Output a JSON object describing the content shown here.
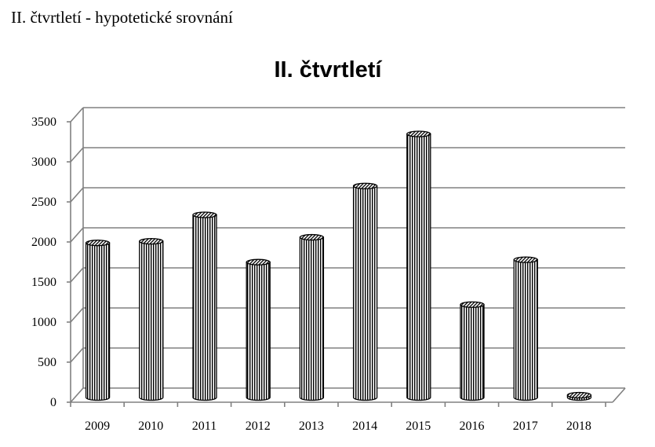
{
  "page": {
    "heading": "II. čtvrtletí - hypotetické srovnání"
  },
  "chart_data": {
    "type": "bar",
    "title": "II. čtvrtletí",
    "xlabel": "",
    "ylabel": "",
    "categories": [
      "2009",
      "2010",
      "2011",
      "2012",
      "2013",
      "2014",
      "2015",
      "2016",
      "2017",
      "2018"
    ],
    "values": [
      1900,
      1920,
      2250,
      1660,
      1970,
      2610,
      3260,
      1130,
      1690,
      0
    ],
    "ylim": [
      0,
      3500
    ],
    "yticks": [
      0,
      500,
      1000,
      1500,
      2000,
      2500,
      3000,
      3500
    ],
    "grid": true,
    "legend": "none",
    "style": "3d-cylinder, vertical hatching",
    "colors": {
      "grid": "#808080",
      "bar_stroke": "#000000",
      "bar_fill": "#ffffff"
    }
  }
}
